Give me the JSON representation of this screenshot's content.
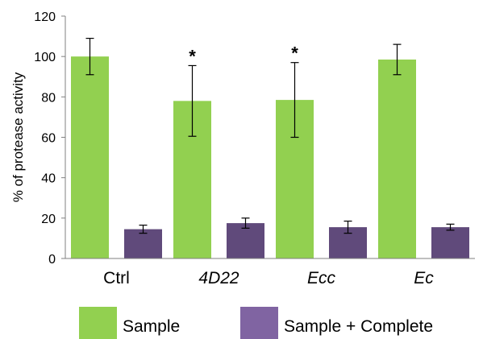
{
  "chart_data": {
    "type": "bar",
    "title": "",
    "xlabel": "",
    "ylabel": "% of protease activity",
    "ylim": [
      0,
      120
    ],
    "yticks": [
      0,
      20,
      40,
      60,
      80,
      100,
      120
    ],
    "grid": false,
    "legend_position": "bottom",
    "categories": [
      {
        "label": "Ctrl",
        "italic": false
      },
      {
        "label": "4D22",
        "italic": true
      },
      {
        "label": "Ecc",
        "italic": true
      },
      {
        "label": "Ec",
        "italic": true
      }
    ],
    "series": [
      {
        "name": "Sample",
        "color": "#92d050",
        "values": [
          100,
          78,
          78.5,
          98.5
        ],
        "error": [
          9,
          17.5,
          18.5,
          7.5
        ]
      },
      {
        "name": "Sample + Complete",
        "color": "#604a7b",
        "legend_color": "#8064a2",
        "values": [
          14.5,
          17.5,
          15.5,
          15.5
        ],
        "error": [
          2,
          2.5,
          3,
          1.5
        ]
      }
    ],
    "annotations": [
      {
        "category": 1,
        "series": 0,
        "text": "*"
      },
      {
        "category": 2,
        "series": 0,
        "text": "*"
      }
    ]
  }
}
